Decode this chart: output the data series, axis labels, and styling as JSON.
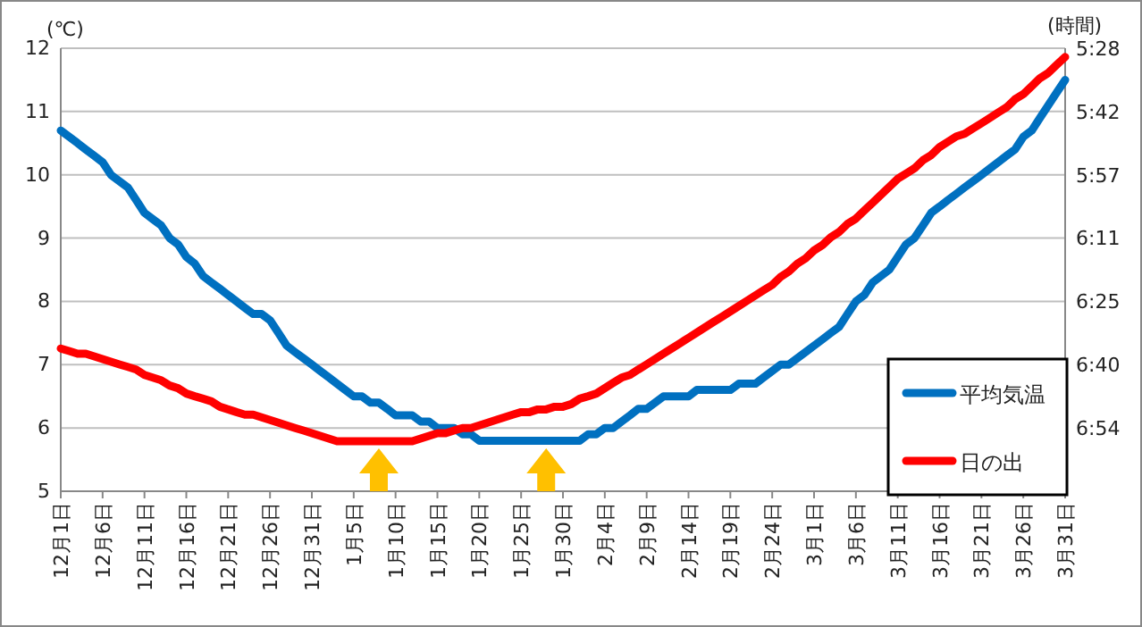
{
  "chart_data": {
    "type": "line",
    "ylabel": "(℃)",
    "y2label": "(時間)",
    "categories": [
      "12月1日",
      null,
      null,
      null,
      null,
      "12月6日",
      null,
      null,
      null,
      null,
      "12月11日",
      null,
      null,
      null,
      null,
      "12月16日",
      null,
      null,
      null,
      null,
      "12月21日",
      null,
      null,
      null,
      null,
      "12月26日",
      null,
      null,
      null,
      null,
      "12月31日",
      null,
      null,
      null,
      null,
      "1月5日",
      null,
      null,
      null,
      null,
      "1月10日",
      null,
      null,
      null,
      null,
      "1月15日",
      null,
      null,
      null,
      null,
      "1月20日",
      null,
      null,
      null,
      null,
      "1月25日",
      null,
      null,
      null,
      null,
      "1月30日",
      null,
      null,
      null,
      null,
      "2月4日",
      null,
      null,
      null,
      null,
      "2月9日",
      null,
      null,
      null,
      null,
      "2月14日",
      null,
      null,
      null,
      null,
      "2月19日",
      null,
      null,
      null,
      null,
      "2月24日",
      null,
      null,
      null,
      null,
      "3月1日",
      null,
      null,
      null,
      null,
      "3月6日",
      null,
      null,
      null,
      null,
      "3月11日",
      null,
      null,
      null,
      null,
      "3月16日",
      null,
      null,
      null,
      null,
      "3月21日",
      null,
      null,
      null,
      null,
      "3月26日",
      null,
      null,
      null,
      null,
      "3月31日"
    ],
    "ylim": [
      5,
      12
    ],
    "yticks": [
      5,
      6,
      7,
      8,
      9,
      10,
      11,
      12
    ],
    "y2lim": [
      7.139,
      5.467
    ],
    "y2ticks": [
      {
        "value": 5.467,
        "label": "5:28"
      },
      {
        "value": 5.706,
        "label": "5:42"
      },
      {
        "value": 5.944,
        "label": "5:57"
      },
      {
        "value": 6.183,
        "label": "6:11"
      },
      {
        "value": 6.422,
        "label": "6:25"
      },
      {
        "value": 6.661,
        "label": "6:40"
      },
      {
        "value": 6.9,
        "label": "6:54"
      }
    ],
    "grid": "y",
    "legend": "bottom right",
    "line_style": "solid",
    "series": [
      {
        "name": "平均気温",
        "color": "#0070c0",
        "values": [
          10.7,
          10.6,
          10.5,
          10.4,
          10.3,
          10.2,
          10.0,
          9.9,
          9.8,
          9.6,
          9.4,
          9.3,
          9.2,
          9.0,
          8.9,
          8.7,
          8.6,
          8.4,
          8.3,
          8.2,
          8.1,
          8.0,
          7.9,
          7.8,
          7.8,
          7.7,
          7.5,
          7.3,
          7.2,
          7.1,
          7.0,
          6.9,
          6.8,
          6.7,
          6.6,
          6.5,
          6.5,
          6.4,
          6.4,
          6.3,
          6.2,
          6.2,
          6.2,
          6.1,
          6.1,
          6.0,
          6.0,
          6.0,
          5.9,
          5.9,
          5.8,
          5.8,
          5.8,
          5.8,
          5.8,
          5.8,
          5.8,
          5.8,
          5.8,
          5.8,
          5.8,
          5.8,
          5.8,
          5.9,
          5.9,
          6.0,
          6.0,
          6.1,
          6.2,
          6.3,
          6.3,
          6.4,
          6.5,
          6.5,
          6.5,
          6.5,
          6.6,
          6.6,
          6.6,
          6.6,
          6.6,
          6.7,
          6.7,
          6.7,
          6.8,
          6.9,
          7.0,
          7.0,
          7.1,
          7.2,
          7.3,
          7.4,
          7.5,
          7.6,
          7.8,
          8.0,
          8.1,
          8.3,
          8.4,
          8.5,
          8.7,
          8.9,
          9.0,
          9.2,
          9.4,
          9.5,
          9.6,
          9.7,
          9.8,
          9.9,
          10.0,
          10.1,
          10.2,
          10.3,
          10.4,
          10.6,
          10.7,
          10.9,
          11.1,
          11.3,
          11.5
        ]
      },
      {
        "name": "日の出",
        "color": "#ff0000",
        "axis": "y2",
        "values": [
          6.6,
          6.61,
          6.62,
          6.62,
          6.63,
          6.64,
          6.65,
          6.66,
          6.67,
          6.68,
          6.7,
          6.71,
          6.72,
          6.74,
          6.75,
          6.77,
          6.78,
          6.79,
          6.8,
          6.82,
          6.83,
          6.84,
          6.85,
          6.85,
          6.86,
          6.87,
          6.88,
          6.89,
          6.9,
          6.91,
          6.92,
          6.93,
          6.94,
          6.95,
          6.95,
          6.95,
          6.95,
          6.95,
          6.95,
          6.95,
          6.95,
          6.95,
          6.95,
          6.94,
          6.93,
          6.92,
          6.92,
          6.91,
          6.9,
          6.9,
          6.89,
          6.88,
          6.87,
          6.86,
          6.85,
          6.84,
          6.84,
          6.83,
          6.83,
          6.82,
          6.82,
          6.81,
          6.79,
          6.78,
          6.77,
          6.75,
          6.73,
          6.71,
          6.7,
          6.68,
          6.66,
          6.64,
          6.62,
          6.6,
          6.58,
          6.56,
          6.54,
          6.52,
          6.5,
          6.48,
          6.46,
          6.44,
          6.42,
          6.4,
          6.38,
          6.36,
          6.33,
          6.31,
          6.28,
          6.26,
          6.23,
          6.21,
          6.18,
          6.16,
          6.13,
          6.11,
          6.08,
          6.05,
          6.02,
          5.99,
          5.96,
          5.94,
          5.92,
          5.89,
          5.87,
          5.84,
          5.82,
          5.8,
          5.79,
          5.77,
          5.75,
          5.73,
          5.71,
          5.69,
          5.66,
          5.64,
          5.61,
          5.58,
          5.56,
          5.53,
          5.5
        ]
      }
    ]
  }
}
